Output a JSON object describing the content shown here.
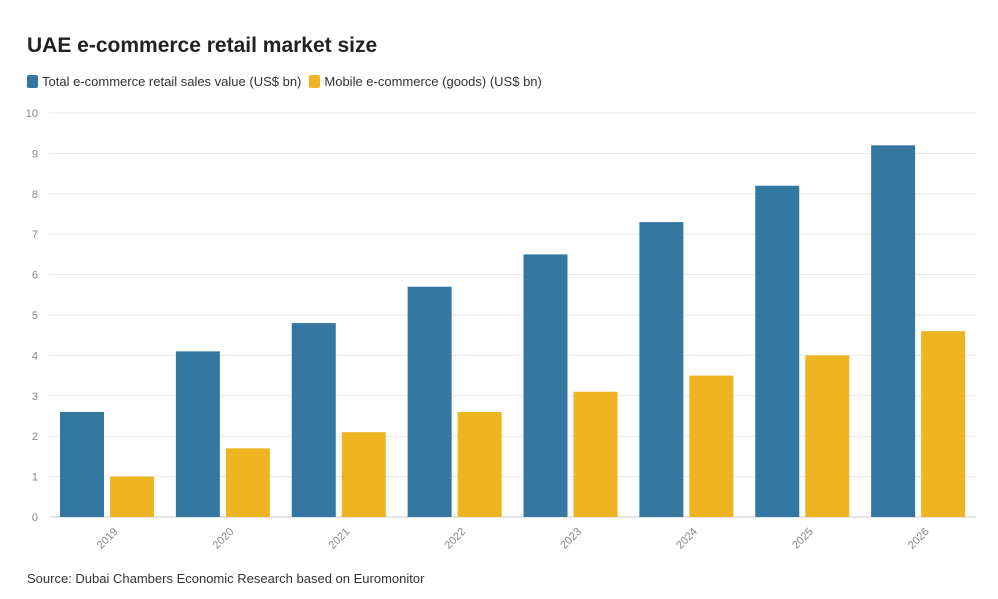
{
  "chart_data": {
    "type": "bar",
    "title": "UAE e-commerce retail market size",
    "categories": [
      "2019",
      "2020",
      "2021",
      "2022",
      "2023",
      "2024",
      "2025",
      "2026"
    ],
    "series": [
      {
        "name": "Total e-commerce retail sales value (US$ bn)",
        "color": "#3477a0",
        "values": [
          2.6,
          4.1,
          4.8,
          5.7,
          6.5,
          7.3,
          8.2,
          9.2
        ]
      },
      {
        "name": "Mobile e-commerce (goods) (US$ bn)",
        "color": "#eeb422",
        "values": [
          1.0,
          1.7,
          2.1,
          2.6,
          3.1,
          3.5,
          4.0,
          4.6
        ]
      }
    ],
    "yticks": [
      0,
      1,
      2,
      3,
      4,
      5,
      6,
      7,
      8,
      9,
      10
    ],
    "ylim": [
      0,
      10
    ],
    "grid": true,
    "legend_position": "top-left"
  },
  "source": "Source: Dubai Chambers Economic Research based on Euromonitor"
}
